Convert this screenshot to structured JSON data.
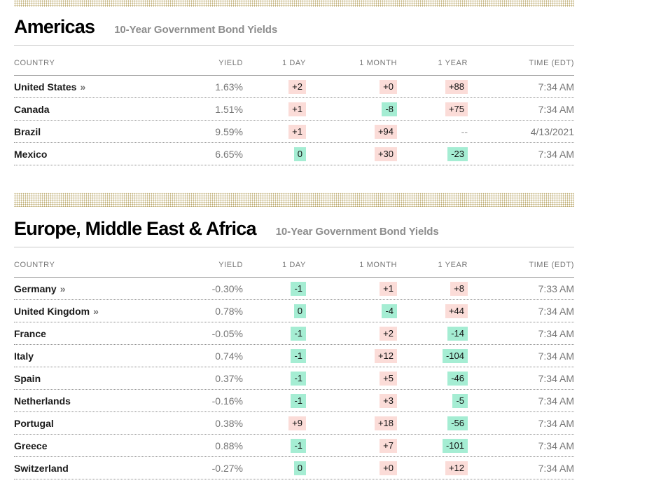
{
  "colors": {
    "positive_change_bg": "#fbdcd8",
    "negative_change_bg": "#a5edd3",
    "divider_dot": "#b5a15f",
    "muted_text": "#757575"
  },
  "sections": [
    {
      "title": "Americas",
      "subtitle": "10-Year Government Bond Yields",
      "columns": [
        "COUNTRY",
        "YIELD",
        "1 DAY",
        "1 MONTH",
        "1 YEAR",
        "TIME (EDT)"
      ],
      "link_arrow": "»",
      "rows": [
        {
          "country": "United States",
          "link": true,
          "yield": "1.63%",
          "day": "+2",
          "day_tone": "up",
          "month": "+0",
          "month_tone": "up",
          "year": "+88",
          "year_tone": "up",
          "time": "7:34 AM"
        },
        {
          "country": "Canada",
          "link": false,
          "yield": "1.51%",
          "day": "+1",
          "day_tone": "up",
          "month": "-8",
          "month_tone": "down",
          "year": "+75",
          "year_tone": "up",
          "time": "7:34 AM"
        },
        {
          "country": "Brazil",
          "link": false,
          "yield": "9.59%",
          "day": "+1",
          "day_tone": "up",
          "month": "+94",
          "month_tone": "up",
          "year": "--",
          "year_tone": "none",
          "time": "4/13/2021"
        },
        {
          "country": "Mexico",
          "link": false,
          "yield": "6.65%",
          "day": "0",
          "day_tone": "down",
          "month": "+30",
          "month_tone": "up",
          "year": "-23",
          "year_tone": "down",
          "time": "7:34 AM"
        }
      ]
    },
    {
      "title": "Europe, Middle East & Africa",
      "subtitle": "10-Year Government Bond Yields",
      "columns": [
        "COUNTRY",
        "YIELD",
        "1 DAY",
        "1 MONTH",
        "1 YEAR",
        "TIME (EDT)"
      ],
      "link_arrow": "»",
      "rows": [
        {
          "country": "Germany",
          "link": true,
          "yield": "-0.30%",
          "day": "-1",
          "day_tone": "down",
          "month": "+1",
          "month_tone": "up",
          "year": "+8",
          "year_tone": "up",
          "time": "7:33 AM"
        },
        {
          "country": "United Kingdom",
          "link": true,
          "yield": "0.78%",
          "day": "0",
          "day_tone": "down",
          "month": "-4",
          "month_tone": "down",
          "year": "+44",
          "year_tone": "up",
          "time": "7:34 AM"
        },
        {
          "country": "France",
          "link": false,
          "yield": "-0.05%",
          "day": "-1",
          "day_tone": "down",
          "month": "+2",
          "month_tone": "up",
          "year": "-14",
          "year_tone": "down",
          "time": "7:34 AM"
        },
        {
          "country": "Italy",
          "link": false,
          "yield": "0.74%",
          "day": "-1",
          "day_tone": "down",
          "month": "+12",
          "month_tone": "up",
          "year": "-104",
          "year_tone": "down",
          "time": "7:34 AM"
        },
        {
          "country": "Spain",
          "link": false,
          "yield": "0.37%",
          "day": "-1",
          "day_tone": "down",
          "month": "+5",
          "month_tone": "up",
          "year": "-46",
          "year_tone": "down",
          "time": "7:34 AM"
        },
        {
          "country": "Netherlands",
          "link": false,
          "yield": "-0.16%",
          "day": "-1",
          "day_tone": "down",
          "month": "+3",
          "month_tone": "up",
          "year": "-5",
          "year_tone": "down",
          "time": "7:34 AM"
        },
        {
          "country": "Portugal",
          "link": false,
          "yield": "0.38%",
          "day": "+9",
          "day_tone": "up",
          "month": "+18",
          "month_tone": "up",
          "year": "-56",
          "year_tone": "down",
          "time": "7:34 AM"
        },
        {
          "country": "Greece",
          "link": false,
          "yield": "0.88%",
          "day": "-1",
          "day_tone": "down",
          "month": "+7",
          "month_tone": "up",
          "year": "-101",
          "year_tone": "down",
          "time": "7:34 AM"
        },
        {
          "country": "Switzerland",
          "link": false,
          "yield": "-0.27%",
          "day": "0",
          "day_tone": "down",
          "month": "+0",
          "month_tone": "up",
          "year": "+12",
          "year_tone": "up",
          "time": "7:34 AM"
        }
      ]
    }
  ]
}
